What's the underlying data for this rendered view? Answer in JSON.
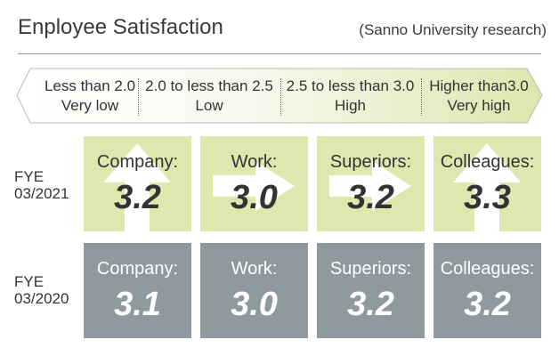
{
  "title": "Enployee Satisfaction",
  "source": "(Sanno University research)",
  "scale": [
    {
      "range": "Less than 2.0",
      "level": "Very low"
    },
    {
      "range": "2.0 to less than 2.5",
      "level": "Low"
    },
    {
      "range": "2.5 to less than 3.0",
      "level": "High"
    },
    {
      "range": "Higher than3.0",
      "level": "Very high"
    }
  ],
  "rows": [
    {
      "year_line1": "FYE",
      "year_line2": "03/2021",
      "cards": [
        {
          "label": "Company:",
          "value": "3.2",
          "trend": "up"
        },
        {
          "label": "Work:",
          "value": "3.0",
          "trend": "right"
        },
        {
          "label": "Superiors:",
          "value": "3.2",
          "trend": "right"
        },
        {
          "label": "Colleagues:",
          "value": "3.3",
          "trend": "up"
        }
      ]
    },
    {
      "year_line1": "FYE",
      "year_line2": "03/2020",
      "cards": [
        {
          "label": "Company:",
          "value": "3.1"
        },
        {
          "label": "Work:",
          "value": "3.0"
        },
        {
          "label": "Superiors:",
          "value": "3.2"
        },
        {
          "label": "Colleagues:",
          "value": "3.2"
        }
      ]
    }
  ],
  "colors": {
    "year_2021_card": "#dce8ae",
    "year_2020_card": "#8f9a9e",
    "scale_fill_high": "#dde8b0"
  }
}
